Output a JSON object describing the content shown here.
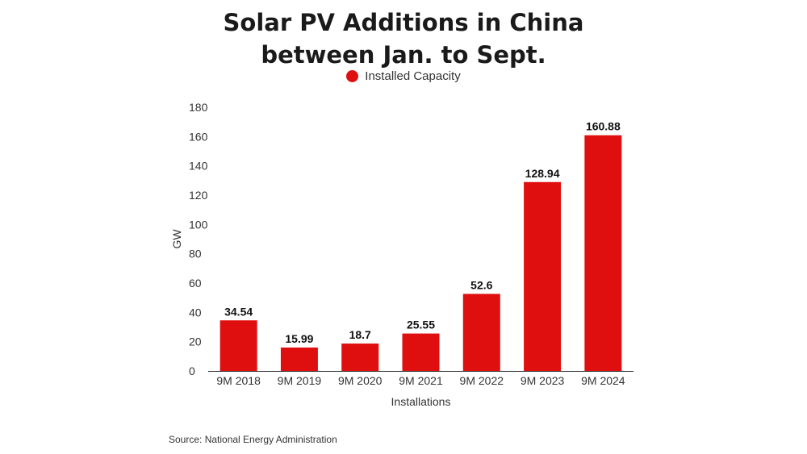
{
  "chart_data": {
    "type": "bar",
    "title": "Solar PV Additions in China between Jan. to Sept.",
    "title_lines": [
      "Solar PV Additions in China",
      "between Jan. to Sept."
    ],
    "xlabel": "Installations",
    "ylabel": "GW",
    "categories": [
      "9M 2018",
      "9M 2019",
      "9M 2020",
      "9M 2021",
      "9M 2022",
      "9M 2023",
      "9M 2024"
    ],
    "series": [
      {
        "name": "Installed Capacity",
        "values": [
          34.54,
          15.99,
          18.7,
          25.55,
          52.6,
          128.94,
          160.88
        ],
        "labels": [
          "34.54",
          "15.99",
          "18.7",
          "25.55",
          "52.6",
          "128.94",
          "160.88"
        ],
        "color": "#e00f0f"
      }
    ],
    "ylim": [
      0,
      180
    ],
    "yticks": [
      "0",
      "20",
      "40",
      "60",
      "80",
      "100",
      "120",
      "140",
      "160",
      "180"
    ],
    "grid": false,
    "legend_position": "top-center"
  },
  "source": "Source: National Energy Administration"
}
